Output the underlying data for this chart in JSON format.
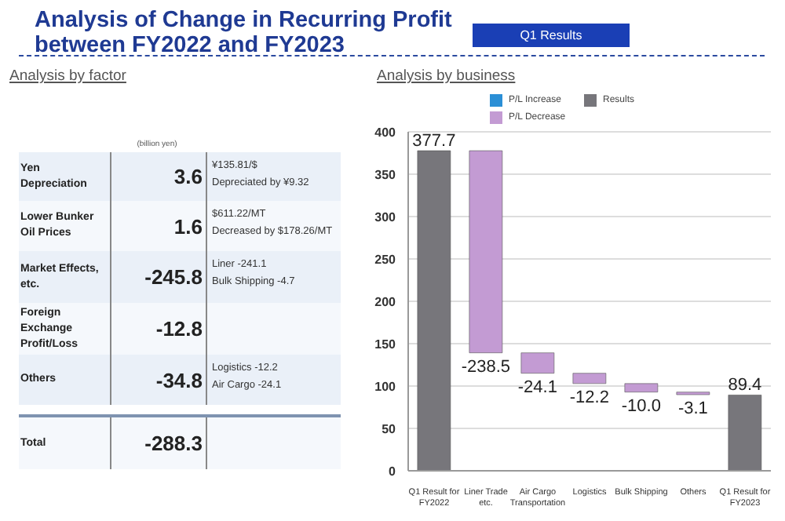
{
  "chart_data": [
    {
      "type": "other",
      "title": "Analysis of Change in Recurring Profit between FY2022 and FY2023",
      "subtitle": "Analysis by factor",
      "annotations": [
        "Q1 Results",
        "(billion yen)"
      ],
      "categories": [
        "Yen Depreciation",
        "Lower Bunker Oil Prices",
        "Market Effects, etc.",
        "Foreign Exchange Profit/Loss",
        "Others",
        "Total"
      ],
      "value_labels": [
        "3.6",
        "1.6",
        "-245.8",
        "-12.8",
        "-34.8",
        "-288.3"
      ],
      "cell_labels": [
        [
          "¥135.81/$",
          "Depreciated by ¥9.32"
        ],
        [
          "$611.22/MT",
          "Decreased by $178.26/MT"
        ],
        [
          "Liner -241.1",
          "Bulk Shipping -4.7"
        ],
        null,
        [
          "Logistics -12.2",
          "Air Cargo -24.1"
        ],
        null
      ]
    },
    {
      "type": "bar",
      "title": "Analysis by business",
      "categories": [
        "Q1 Result for FY2022",
        "Liner Trade etc.",
        "Air Cargo Transportation",
        "Logistics",
        "Bulk Shipping",
        "Others",
        "Q1 Result for FY2023"
      ],
      "series": [
        {
          "name": "P/L Increase",
          "color": "#2b8fd6",
          "values": [
            null,
            null,
            null,
            null,
            null,
            null,
            null
          ],
          "base": [
            null,
            null,
            null,
            null,
            null,
            null,
            null
          ]
        },
        {
          "name": "Results",
          "color": "#77767b",
          "values": [
            377.7,
            null,
            null,
            null,
            null,
            null,
            89.4
          ],
          "base": [
            0,
            null,
            null,
            null,
            null,
            null,
            0
          ],
          "value_labels": [
            "377.7",
            null,
            null,
            null,
            null,
            null,
            "89.4"
          ]
        },
        {
          "name": "P/L Decrease",
          "color": "#c39bd3",
          "values": [
            null,
            -238.5,
            -24.1,
            -12.2,
            -10.0,
            -3.1,
            null
          ],
          "base": [
            null,
            377.7,
            139.2,
            115.1,
            102.9,
            92.9,
            null
          ],
          "value_labels": [
            null,
            "-238.5",
            "-24.1",
            "-12.2",
            "-10.0",
            "-3.1",
            null
          ]
        }
      ],
      "ylim": [
        0,
        400
      ],
      "yticks": [
        0,
        50,
        100,
        150,
        200,
        250,
        300,
        350,
        400
      ],
      "grid": "y",
      "legend": "top"
    }
  ]
}
